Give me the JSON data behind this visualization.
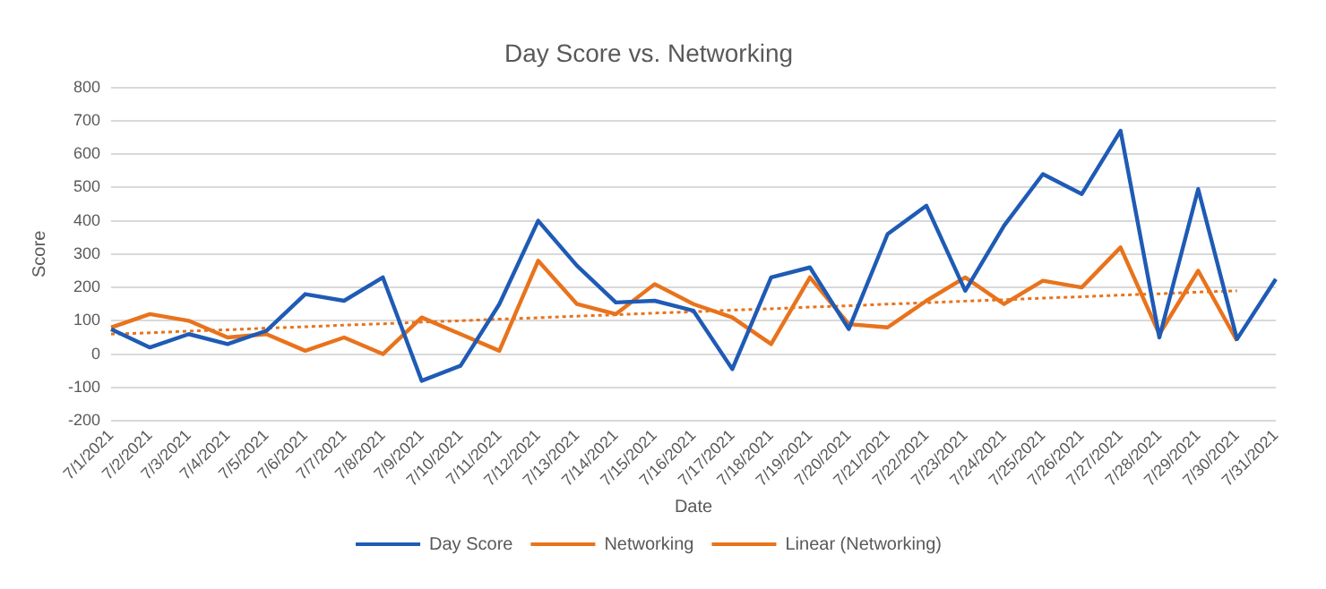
{
  "chart_data": {
    "type": "line",
    "title": "Day Score vs. Networking",
    "xlabel": "Date",
    "ylabel": "Score",
    "categories": [
      "7/1/2021",
      "7/2/2021",
      "7/3/2021",
      "7/4/2021",
      "7/5/2021",
      "7/6/2021",
      "7/7/2021",
      "7/8/2021",
      "7/9/2021",
      "7/10/2021",
      "7/11/2021",
      "7/12/2021",
      "7/13/2021",
      "7/14/2021",
      "7/15/2021",
      "7/16/2021",
      "7/17/2021",
      "7/18/2021",
      "7/19/2021",
      "7/20/2021",
      "7/21/2021",
      "7/22/2021",
      "7/23/2021",
      "7/24/2021",
      "7/25/2021",
      "7/26/2021",
      "7/27/2021",
      "7/28/2021",
      "7/29/2021",
      "7/30/2021",
      "7/31/2021"
    ],
    "series": [
      {
        "name": "Day Score",
        "color": "#1f5bb5",
        "values": [
          75,
          20,
          60,
          30,
          70,
          180,
          160,
          230,
          -80,
          -35,
          150,
          400,
          265,
          155,
          160,
          130,
          -45,
          230,
          260,
          75,
          360,
          445,
          190,
          385,
          540,
          480,
          670,
          50,
          495,
          45,
          225
        ]
      },
      {
        "name": "Networking",
        "color": "#e8731c",
        "values": [
          80,
          120,
          100,
          50,
          60,
          10,
          50,
          0,
          110,
          60,
          10,
          280,
          150,
          120,
          210,
          150,
          110,
          30,
          230,
          90,
          80,
          160,
          230,
          150,
          220,
          200,
          320,
          60,
          250,
          40,
          null
        ]
      },
      {
        "name": "Linear (Networking)",
        "color": "#e8731c",
        "line_style": "dotted",
        "values": [
          60,
          64,
          69,
          73,
          78,
          82,
          87,
          91,
          96,
          100,
          105,
          109,
          114,
          118,
          123,
          127,
          132,
          136,
          141,
          145,
          150,
          154,
          159,
          163,
          168,
          172,
          177,
          181,
          186,
          190,
          null
        ]
      }
    ],
    "ylim": [
      -200,
      800
    ],
    "yticks": [
      -200,
      -100,
      0,
      100,
      200,
      300,
      400,
      500,
      600,
      700,
      800
    ],
    "grid": "y",
    "legend": "bottom",
    "marker": "none",
    "line_style": "solid"
  }
}
